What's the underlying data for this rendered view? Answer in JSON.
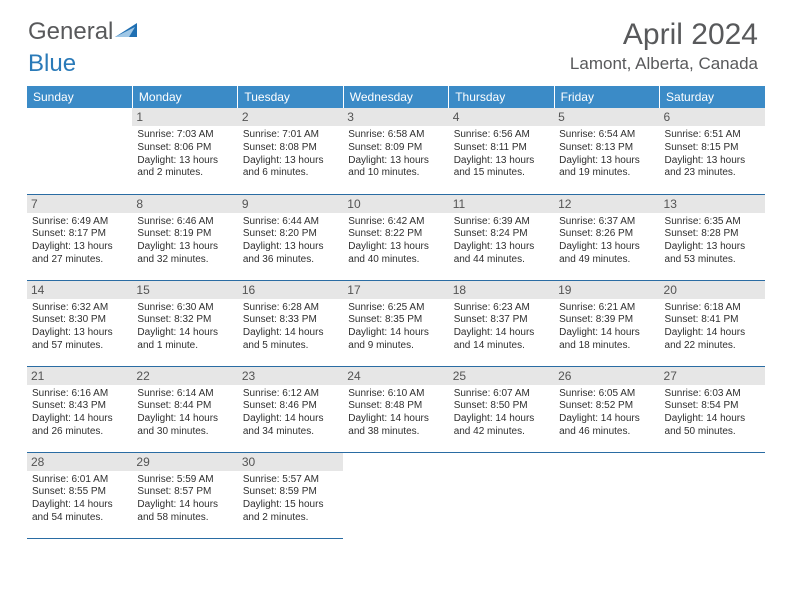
{
  "logo": {
    "part1": "General",
    "part2": "Blue"
  },
  "title": "April 2024",
  "location": "Lamont, Alberta, Canada",
  "colors": {
    "header_bg": "#3b8bc7",
    "header_text": "#ffffff",
    "daynum_bg": "#e6e6e6",
    "title_color": "#58595b",
    "rule_color": "#2a6ca3"
  },
  "weekdays": [
    "Sunday",
    "Monday",
    "Tuesday",
    "Wednesday",
    "Thursday",
    "Friday",
    "Saturday"
  ],
  "weeks": [
    [
      {
        "n": "",
        "sr": "",
        "ss": "",
        "dl": ""
      },
      {
        "n": "1",
        "sr": "Sunrise: 7:03 AM",
        "ss": "Sunset: 8:06 PM",
        "dl": "Daylight: 13 hours and 2 minutes."
      },
      {
        "n": "2",
        "sr": "Sunrise: 7:01 AM",
        "ss": "Sunset: 8:08 PM",
        "dl": "Daylight: 13 hours and 6 minutes."
      },
      {
        "n": "3",
        "sr": "Sunrise: 6:58 AM",
        "ss": "Sunset: 8:09 PM",
        "dl": "Daylight: 13 hours and 10 minutes."
      },
      {
        "n": "4",
        "sr": "Sunrise: 6:56 AM",
        "ss": "Sunset: 8:11 PM",
        "dl": "Daylight: 13 hours and 15 minutes."
      },
      {
        "n": "5",
        "sr": "Sunrise: 6:54 AM",
        "ss": "Sunset: 8:13 PM",
        "dl": "Daylight: 13 hours and 19 minutes."
      },
      {
        "n": "6",
        "sr": "Sunrise: 6:51 AM",
        "ss": "Sunset: 8:15 PM",
        "dl": "Daylight: 13 hours and 23 minutes."
      }
    ],
    [
      {
        "n": "7",
        "sr": "Sunrise: 6:49 AM",
        "ss": "Sunset: 8:17 PM",
        "dl": "Daylight: 13 hours and 27 minutes."
      },
      {
        "n": "8",
        "sr": "Sunrise: 6:46 AM",
        "ss": "Sunset: 8:19 PM",
        "dl": "Daylight: 13 hours and 32 minutes."
      },
      {
        "n": "9",
        "sr": "Sunrise: 6:44 AM",
        "ss": "Sunset: 8:20 PM",
        "dl": "Daylight: 13 hours and 36 minutes."
      },
      {
        "n": "10",
        "sr": "Sunrise: 6:42 AM",
        "ss": "Sunset: 8:22 PM",
        "dl": "Daylight: 13 hours and 40 minutes."
      },
      {
        "n": "11",
        "sr": "Sunrise: 6:39 AM",
        "ss": "Sunset: 8:24 PM",
        "dl": "Daylight: 13 hours and 44 minutes."
      },
      {
        "n": "12",
        "sr": "Sunrise: 6:37 AM",
        "ss": "Sunset: 8:26 PM",
        "dl": "Daylight: 13 hours and 49 minutes."
      },
      {
        "n": "13",
        "sr": "Sunrise: 6:35 AM",
        "ss": "Sunset: 8:28 PM",
        "dl": "Daylight: 13 hours and 53 minutes."
      }
    ],
    [
      {
        "n": "14",
        "sr": "Sunrise: 6:32 AM",
        "ss": "Sunset: 8:30 PM",
        "dl": "Daylight: 13 hours and 57 minutes."
      },
      {
        "n": "15",
        "sr": "Sunrise: 6:30 AM",
        "ss": "Sunset: 8:32 PM",
        "dl": "Daylight: 14 hours and 1 minute."
      },
      {
        "n": "16",
        "sr": "Sunrise: 6:28 AM",
        "ss": "Sunset: 8:33 PM",
        "dl": "Daylight: 14 hours and 5 minutes."
      },
      {
        "n": "17",
        "sr": "Sunrise: 6:25 AM",
        "ss": "Sunset: 8:35 PM",
        "dl": "Daylight: 14 hours and 9 minutes."
      },
      {
        "n": "18",
        "sr": "Sunrise: 6:23 AM",
        "ss": "Sunset: 8:37 PM",
        "dl": "Daylight: 14 hours and 14 minutes."
      },
      {
        "n": "19",
        "sr": "Sunrise: 6:21 AM",
        "ss": "Sunset: 8:39 PM",
        "dl": "Daylight: 14 hours and 18 minutes."
      },
      {
        "n": "20",
        "sr": "Sunrise: 6:18 AM",
        "ss": "Sunset: 8:41 PM",
        "dl": "Daylight: 14 hours and 22 minutes."
      }
    ],
    [
      {
        "n": "21",
        "sr": "Sunrise: 6:16 AM",
        "ss": "Sunset: 8:43 PM",
        "dl": "Daylight: 14 hours and 26 minutes."
      },
      {
        "n": "22",
        "sr": "Sunrise: 6:14 AM",
        "ss": "Sunset: 8:44 PM",
        "dl": "Daylight: 14 hours and 30 minutes."
      },
      {
        "n": "23",
        "sr": "Sunrise: 6:12 AM",
        "ss": "Sunset: 8:46 PM",
        "dl": "Daylight: 14 hours and 34 minutes."
      },
      {
        "n": "24",
        "sr": "Sunrise: 6:10 AM",
        "ss": "Sunset: 8:48 PM",
        "dl": "Daylight: 14 hours and 38 minutes."
      },
      {
        "n": "25",
        "sr": "Sunrise: 6:07 AM",
        "ss": "Sunset: 8:50 PM",
        "dl": "Daylight: 14 hours and 42 minutes."
      },
      {
        "n": "26",
        "sr": "Sunrise: 6:05 AM",
        "ss": "Sunset: 8:52 PM",
        "dl": "Daylight: 14 hours and 46 minutes."
      },
      {
        "n": "27",
        "sr": "Sunrise: 6:03 AM",
        "ss": "Sunset: 8:54 PM",
        "dl": "Daylight: 14 hours and 50 minutes."
      }
    ],
    [
      {
        "n": "28",
        "sr": "Sunrise: 6:01 AM",
        "ss": "Sunset: 8:55 PM",
        "dl": "Daylight: 14 hours and 54 minutes."
      },
      {
        "n": "29",
        "sr": "Sunrise: 5:59 AM",
        "ss": "Sunset: 8:57 PM",
        "dl": "Daylight: 14 hours and 58 minutes."
      },
      {
        "n": "30",
        "sr": "Sunrise: 5:57 AM",
        "ss": "Sunset: 8:59 PM",
        "dl": "Daylight: 15 hours and 2 minutes."
      },
      {
        "n": "",
        "sr": "",
        "ss": "",
        "dl": ""
      },
      {
        "n": "",
        "sr": "",
        "ss": "",
        "dl": ""
      },
      {
        "n": "",
        "sr": "",
        "ss": "",
        "dl": ""
      },
      {
        "n": "",
        "sr": "",
        "ss": "",
        "dl": ""
      }
    ]
  ]
}
